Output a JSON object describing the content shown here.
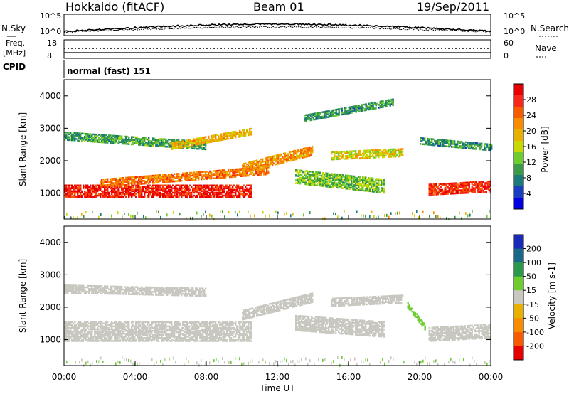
{
  "header": {
    "station": "Hokkaido (fitACF)",
    "beam": "Beam 01",
    "date": "19/Sep/2011",
    "cpid_label": "CPID",
    "cpid_text": "normal (fast) 151"
  },
  "noise_panel": {
    "left_label": "N.Sky",
    "right_label": "N.Search",
    "ticks_left": [
      "10^5",
      "10^0"
    ],
    "ticks_right": [
      "10^5",
      "10^0"
    ]
  },
  "freq_panel": {
    "left_label_1": "Freq.",
    "left_label_2": "[MHz]",
    "right_label": "Nave",
    "ticks_left": [
      "18",
      "8"
    ],
    "ticks_right": [
      "60",
      "0"
    ]
  },
  "axes": {
    "ylabel": "Slant Range [km]",
    "xlabel": "Time UT",
    "yticks": [
      "4000",
      "3000",
      "2000",
      "1000"
    ],
    "xticks": [
      "00:00",
      "04:00",
      "08:00",
      "12:00",
      "16:00",
      "20:00",
      "00:00"
    ]
  },
  "colorbars": {
    "power": {
      "label": "Power [dB]",
      "ticks": [
        "28",
        "24",
        "20",
        "16",
        "12",
        "8",
        "4"
      ],
      "colors": [
        "#e80000",
        "#f82818",
        "#f85a00",
        "#f88c00",
        "#e8b000",
        "#c8d800",
        "#6ccc30",
        "#3a9a4a",
        "#1a7a7a",
        "#1a3ec0",
        "#0000e0"
      ]
    },
    "velocity": {
      "label": "Velocity [m s-1]",
      "ticks": [
        "200",
        "100",
        "50",
        "15",
        "-15",
        "-50",
        "-100",
        "-200"
      ],
      "colors": [
        "#1a2ab8",
        "#1a6888",
        "#2a9a4a",
        "#6ccc30",
        "#c8c8c0",
        "#e8b000",
        "#f88c00",
        "#f85a00",
        "#e80000"
      ]
    }
  },
  "chart_data": [
    {
      "type": "heatmap",
      "title": "Power",
      "xlabel": "Time UT",
      "ylabel": "Slant Range [km]",
      "xlim": [
        0,
        24
      ],
      "ylim": [
        200,
        4500
      ],
      "colorbar": "Power [dB]",
      "colorbar_range": [
        0,
        30
      ],
      "bands": [
        {
          "t_start": 0,
          "t_end": 10.5,
          "range_start": 1050,
          "range_end": 1050,
          "width": 380,
          "level": 27
        },
        {
          "t_start": 2,
          "t_end": 11.5,
          "range_start": 1300,
          "range_end": 1700,
          "width": 260,
          "level": 22
        },
        {
          "t_start": 10,
          "t_end": 14,
          "range_start": 1750,
          "range_end": 2300,
          "width": 280,
          "level": 20
        },
        {
          "t_start": 0,
          "t_end": 8,
          "range_start": 2750,
          "range_end": 2450,
          "width": 240,
          "level": 10
        },
        {
          "t_start": 6,
          "t_end": 10.5,
          "range_start": 2450,
          "range_end": 2900,
          "width": 220,
          "level": 18
        },
        {
          "t_start": 13,
          "t_end": 18,
          "range_start": 1500,
          "range_end": 1200,
          "width": 420,
          "level": 12
        },
        {
          "t_start": 15,
          "t_end": 19,
          "range_start": 2150,
          "range_end": 2250,
          "width": 260,
          "level": 16
        },
        {
          "t_start": 20.5,
          "t_end": 24,
          "range_start": 1100,
          "range_end": 1200,
          "width": 340,
          "level": 26
        },
        {
          "t_start": 20,
          "t_end": 24,
          "range_start": 2600,
          "range_end": 2400,
          "width": 200,
          "level": 9
        },
        {
          "t_start": 13.5,
          "t_end": 18.5,
          "range_start": 3300,
          "range_end": 3800,
          "width": 200,
          "level": 9
        }
      ]
    },
    {
      "type": "heatmap",
      "title": "Velocity",
      "xlabel": "Time UT",
      "ylabel": "Slant Range [km]",
      "xlim": [
        0,
        24
      ],
      "ylim": [
        200,
        4500
      ],
      "colorbar": "Velocity [m s-1]",
      "colorbar_range": [
        -200,
        200
      ],
      "bands": [
        {
          "t_start": 0,
          "t_end": 10.5,
          "range_start": 1250,
          "range_end": 1250,
          "width": 620,
          "level": 0
        },
        {
          "t_start": 10,
          "t_end": 14,
          "range_start": 1750,
          "range_end": 2300,
          "width": 300,
          "level": 0
        },
        {
          "t_start": 0,
          "t_end": 8,
          "range_start": 2550,
          "range_end": 2450,
          "width": 240,
          "level": 0
        },
        {
          "t_start": 13,
          "t_end": 18,
          "range_start": 1500,
          "range_end": 1300,
          "width": 460,
          "level": 0
        },
        {
          "t_start": 15,
          "t_end": 19,
          "range_start": 2150,
          "range_end": 2250,
          "width": 260,
          "level": 0
        },
        {
          "t_start": 20.5,
          "t_end": 24,
          "range_start": 1150,
          "range_end": 1250,
          "width": 420,
          "level": 0
        },
        {
          "t_start": 19.3,
          "t_end": 20.3,
          "range_start": 2050,
          "range_end": 1350,
          "width": 160,
          "level": 30
        }
      ]
    }
  ]
}
